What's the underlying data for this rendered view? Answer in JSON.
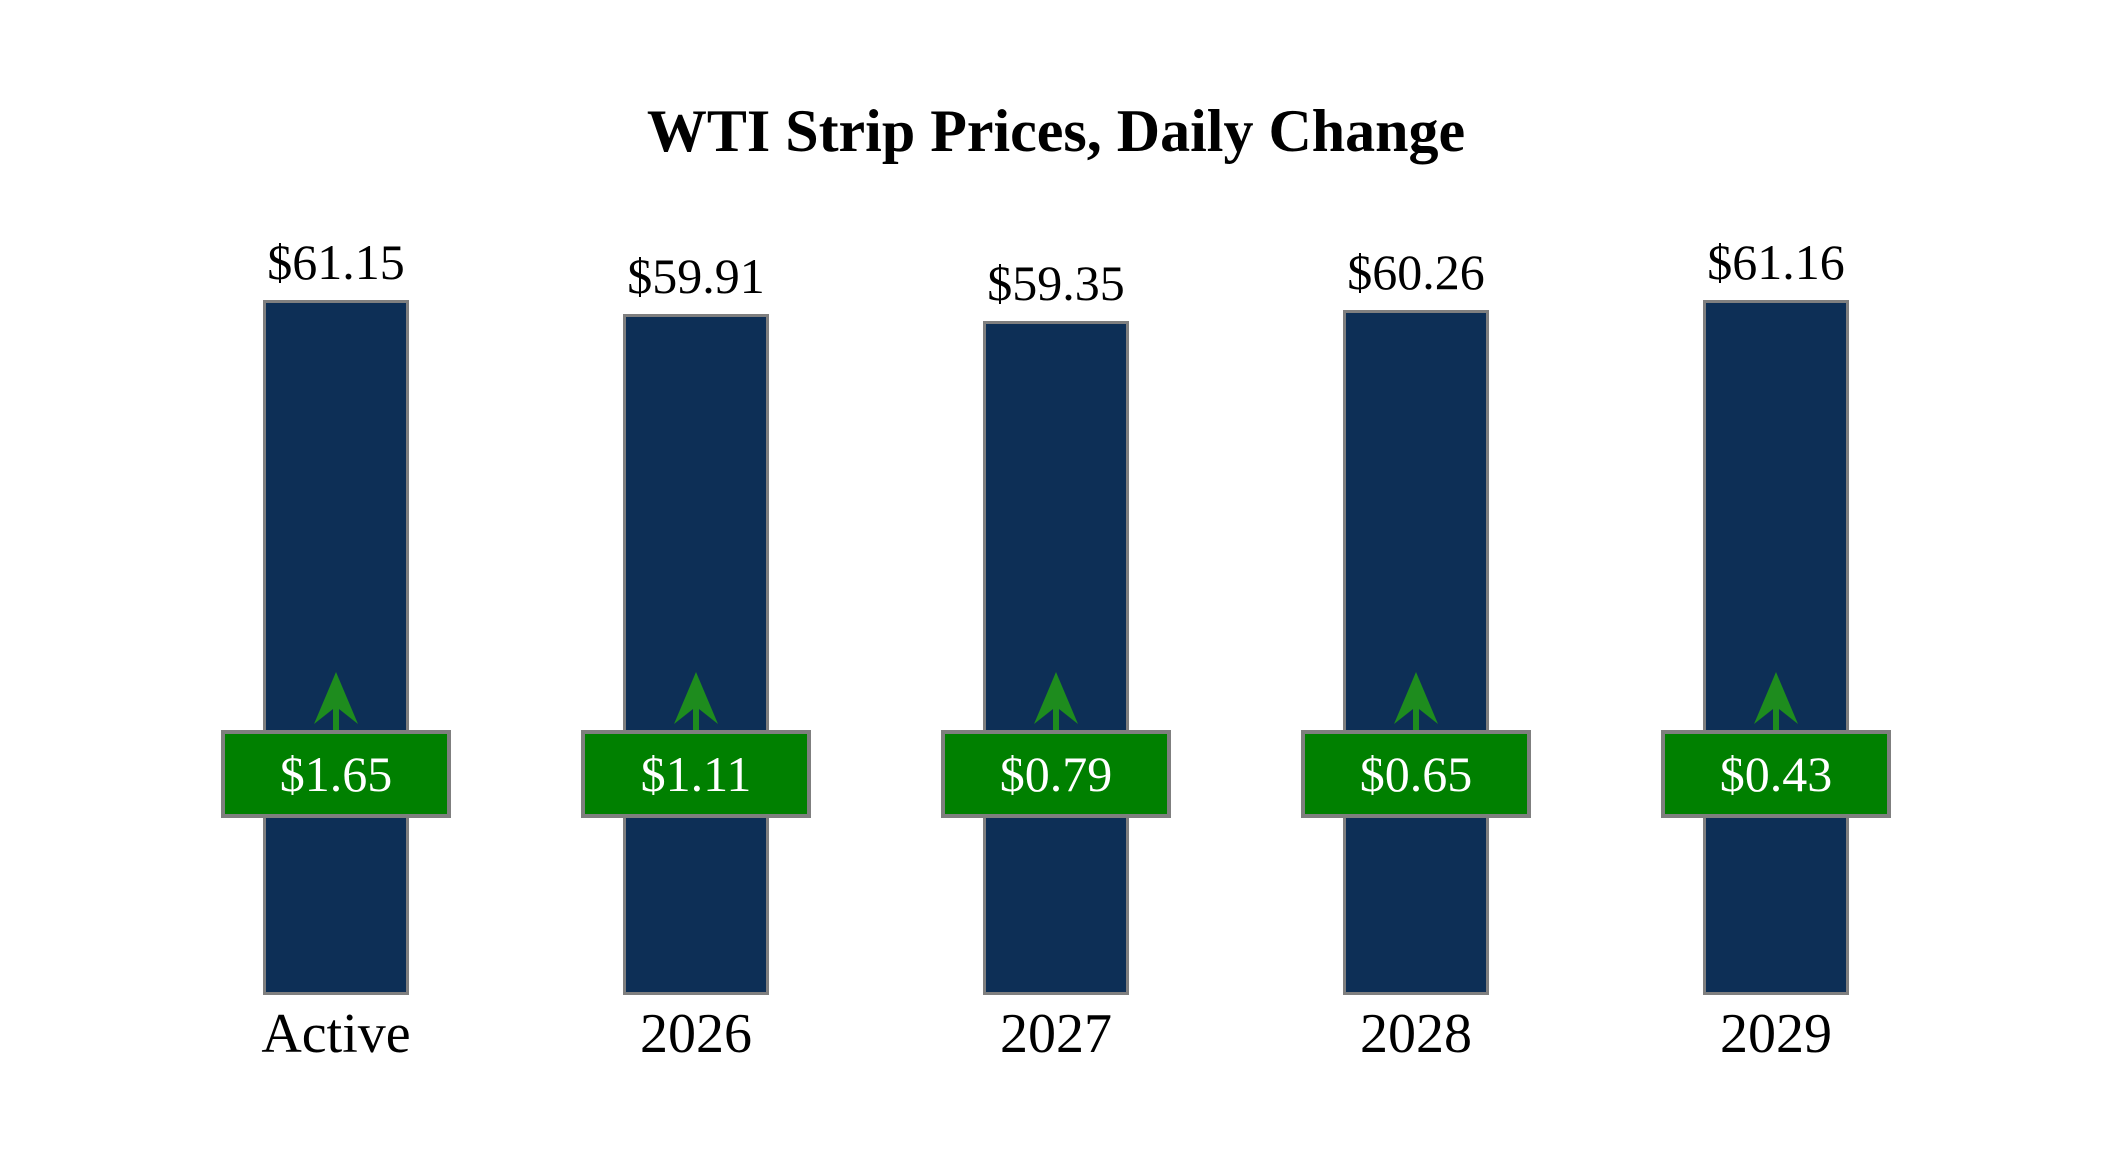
{
  "page": {
    "background": "#FFFFFF"
  },
  "title": "WTI Strip Prices, Daily Change",
  "chart_data": {
    "type": "bar",
    "title": "WTI Strip Prices, Daily Change",
    "categories": [
      "Active",
      "2026",
      "2027",
      "2028",
      "2029"
    ],
    "series": [
      {
        "name": "Strip Price",
        "values": [
          61.15,
          59.91,
          59.35,
          60.26,
          61.16
        ],
        "labels": [
          "$61.15",
          "$59.91",
          "$59.35",
          "$60.26",
          "$61.16"
        ]
      },
      {
        "name": "Daily Change",
        "values": [
          1.65,
          1.11,
          0.79,
          0.65,
          0.43
        ],
        "labels": [
          "$1.65",
          "$1.11",
          "$0.79",
          "$0.65",
          "$0.43"
        ],
        "direction": "up"
      }
    ],
    "ylim": [
      0,
      61.16
    ],
    "grid": false,
    "legend": "none",
    "axes_hidden": true,
    "icons": {
      "change_indicator": "up-arrow-icon"
    },
    "colors": {
      "bar": "#0D2F56",
      "bar_border": "#7F7F7F",
      "badge": "#008000",
      "badge_border": "#7F7F7F",
      "badge_text": "#FFFFFF",
      "arrow": "#1E8C1E",
      "label_text": "#000000",
      "background": "#FFFFFF"
    }
  }
}
